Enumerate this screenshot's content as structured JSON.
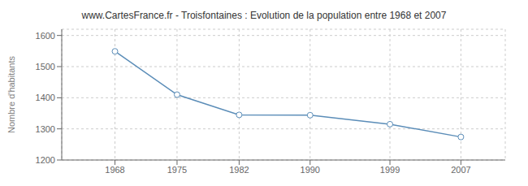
{
  "chart_data": {
    "type": "line",
    "title": "www.CartesFrance.fr - Troisfontaines : Evolution de la population entre 1968 et 2007",
    "ylabel": "Nombre d'habitants",
    "x": [
      1968,
      1975,
      1982,
      1990,
      1999,
      2007
    ],
    "values": [
      1549,
      1410,
      1345,
      1344,
      1315,
      1274
    ],
    "xlim": [
      1962,
      2012
    ],
    "xticks": [
      1968,
      1975,
      1982,
      1990,
      1999,
      2007
    ],
    "ylim": [
      1200,
      1620
    ],
    "yticks": [
      1200,
      1300,
      1400,
      1500,
      1600
    ],
    "grid": true,
    "color": "#5b8db8",
    "marker": "circle"
  }
}
